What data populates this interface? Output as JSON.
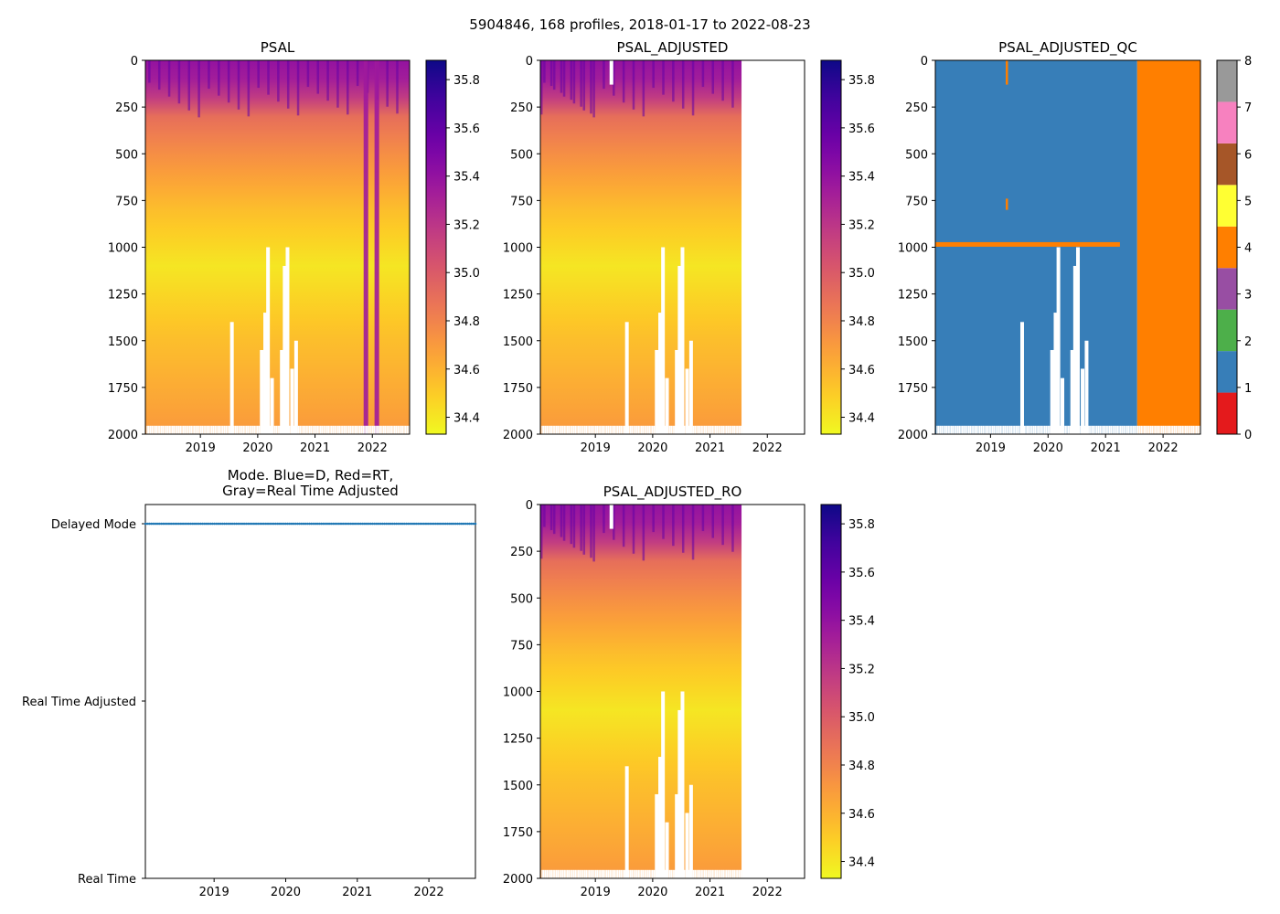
{
  "suptitle": "5904846, 168 profiles, 2018-01-17 to 2022-08-23",
  "colors": {
    "plasma": [
      "#f0f921",
      "#fdca26",
      "#fb9f3a",
      "#ed7953",
      "#d8576b",
      "#bd3786",
      "#9c179e",
      "#7201a8",
      "#46039f",
      "#0d0887"
    ],
    "qc_palette": [
      "#e41a1c",
      "#377eb8",
      "#4daf4a",
      "#984ea3",
      "#ff7f00",
      "#ffff33",
      "#a65628",
      "#f781bf",
      "#999999"
    ],
    "mode_delayed": "#1f77b4",
    "axis": "#000000"
  },
  "chart_data": [
    {
      "id": "psal",
      "type": "heatmap",
      "title": "PSAL",
      "xlabel": "",
      "ylabel": "",
      "xlim": [
        2018.04,
        2022.65
      ],
      "ylim": [
        2000,
        0
      ],
      "yticks": [
        0,
        250,
        500,
        750,
        1000,
        1250,
        1500,
        1750,
        2000
      ],
      "xticks": [
        2019,
        2020,
        2021,
        2022
      ],
      "data_end": 2022.65,
      "colormap": "plasma_r",
      "clim": [
        34.33,
        35.88
      ],
      "colorbar_ticks": [
        "34.4",
        "34.6",
        "34.8",
        "35.0",
        "35.2",
        "35.4",
        "35.6",
        "35.8"
      ],
      "colorbar_values": [
        34.4,
        34.6,
        34.8,
        35.0,
        35.2,
        35.4,
        35.6,
        35.8
      ],
      "profile_salinity": {
        "depth": [
          0,
          150,
          300,
          500,
          800,
          1100,
          1500,
          2000
        ],
        "psal": [
          35.4,
          35.3,
          34.9,
          34.75,
          34.55,
          34.4,
          34.55,
          34.7
        ]
      },
      "high_salinity_strips": [
        {
          "year": 2021.88,
          "psal": 35.35
        },
        {
          "year": 2022.07,
          "psal": 35.35
        }
      ],
      "data_gaps": [
        {
          "year": 2019.55,
          "from_depth": 1400
        },
        {
          "year": 2020.07,
          "from_depth": 1550
        },
        {
          "year": 2020.13,
          "from_depth": 1350
        },
        {
          "year": 2020.18,
          "from_depth": 1000
        },
        {
          "year": 2020.25,
          "from_depth": 1700
        },
        {
          "year": 2020.42,
          "from_depth": 1550
        },
        {
          "year": 2020.47,
          "from_depth": 1100
        },
        {
          "year": 2020.52,
          "from_depth": 1000
        },
        {
          "year": 2020.6,
          "from_depth": 1650
        },
        {
          "year": 2020.67,
          "from_depth": 1500
        }
      ]
    },
    {
      "id": "psal_adjusted",
      "type": "heatmap",
      "title": "PSAL_ADJUSTED",
      "xlabel": "",
      "ylabel": "",
      "xlim": [
        2018.04,
        2022.65
      ],
      "ylim": [
        2000,
        0
      ],
      "yticks": [
        0,
        250,
        500,
        750,
        1000,
        1250,
        1500,
        1750,
        2000
      ],
      "xticks": [
        2019,
        2020,
        2021,
        2022
      ],
      "data_end": 2021.55,
      "colormap": "plasma_r",
      "clim": [
        34.33,
        35.88
      ],
      "colorbar_ticks": [
        "34.4",
        "34.6",
        "34.8",
        "35.0",
        "35.2",
        "35.4",
        "35.6",
        "35.8"
      ],
      "colorbar_values": [
        34.4,
        34.6,
        34.8,
        35.0,
        35.2,
        35.4,
        35.6,
        35.8
      ],
      "profile_salinity": {
        "depth": [
          0,
          150,
          300,
          500,
          800,
          1100,
          1500,
          2000
        ],
        "psal": [
          35.4,
          35.3,
          34.9,
          34.75,
          34.55,
          34.4,
          34.55,
          34.7
        ]
      },
      "data_gaps": [
        {
          "year": 2019.28,
          "from_depth": 0,
          "to_depth": 130
        },
        {
          "year": 2019.55,
          "from_depth": 1400
        },
        {
          "year": 2020.07,
          "from_depth": 1550
        },
        {
          "year": 2020.13,
          "from_depth": 1350
        },
        {
          "year": 2020.18,
          "from_depth": 1000
        },
        {
          "year": 2020.25,
          "from_depth": 1700
        },
        {
          "year": 2020.42,
          "from_depth": 1550
        },
        {
          "year": 2020.47,
          "from_depth": 1100
        },
        {
          "year": 2020.52,
          "from_depth": 1000
        },
        {
          "year": 2020.6,
          "from_depth": 1650
        },
        {
          "year": 2020.67,
          "from_depth": 1500
        }
      ]
    },
    {
      "id": "psal_adjusted_qc",
      "type": "heatmap",
      "title": "PSAL_ADJUSTED_QC",
      "xlabel": "",
      "ylabel": "",
      "xlim": [
        2018.04,
        2022.65
      ],
      "ylim": [
        2000,
        0
      ],
      "yticks": [
        0,
        250,
        500,
        750,
        1000,
        1250,
        1500,
        1750,
        2000
      ],
      "xticks": [
        2019,
        2020,
        2021,
        2022
      ],
      "qc_values": {
        "adjusted_period_flag": 1,
        "after_adjustment_flag": 4,
        "adjusted_until": 2021.55
      },
      "flag4_line": {
        "depth": 985,
        "from": 2018.04,
        "to": 2021.25
      },
      "flag4_spikes": [
        {
          "year": 2019.28,
          "from_depth": 0,
          "to_depth": 130
        },
        {
          "year": 2019.28,
          "from_depth": 740,
          "to_depth": 800
        }
      ],
      "colorbar_ticks": [
        "0",
        "1",
        "2",
        "3",
        "4",
        "5",
        "6",
        "7",
        "8"
      ],
      "colorbar_values": [
        0,
        1,
        2,
        3,
        4,
        5,
        6,
        7,
        8
      ]
    },
    {
      "id": "mode",
      "type": "scatter",
      "title_lines": [
        "Mode. Blue=D, Red=RT,",
        "Gray=Real Time Adjusted"
      ],
      "xlabel": "",
      "ylabel": "",
      "xlim": [
        2018.04,
        2022.65
      ],
      "xticks": [
        2019,
        2020,
        2021,
        2022
      ],
      "ytick_labels": [
        "Delayed Mode",
        "Real Time Adjusted",
        "Real Time"
      ],
      "ytick_values": [
        2,
        1,
        0
      ],
      "series": [
        {
          "name": "D",
          "mode_value": 2,
          "count": 168,
          "x_start": 2018.04,
          "x_end": 2022.65
        }
      ]
    },
    {
      "id": "psal_adjusted_ro",
      "type": "heatmap",
      "title": "PSAL_ADJUSTED_RO",
      "xlabel": "",
      "ylabel": "",
      "xlim": [
        2018.04,
        2022.65
      ],
      "ylim": [
        2000,
        0
      ],
      "yticks": [
        0,
        250,
        500,
        750,
        1000,
        1250,
        1500,
        1750,
        2000
      ],
      "xticks": [
        2019,
        2020,
        2021,
        2022
      ],
      "data_end": 2021.55,
      "colormap": "plasma_r",
      "clim": [
        34.33,
        35.88
      ],
      "colorbar_ticks": [
        "34.4",
        "34.6",
        "34.8",
        "35.0",
        "35.2",
        "35.4",
        "35.6",
        "35.8"
      ],
      "colorbar_values": [
        34.4,
        34.6,
        34.8,
        35.0,
        35.2,
        35.4,
        35.6,
        35.8
      ],
      "profile_salinity": {
        "depth": [
          0,
          150,
          300,
          500,
          800,
          1100,
          1500,
          2000
        ],
        "psal": [
          35.4,
          35.3,
          34.9,
          34.75,
          34.55,
          34.4,
          34.55,
          34.7
        ]
      },
      "data_gaps": [
        {
          "year": 2019.28,
          "from_depth": 0,
          "to_depth": 130
        },
        {
          "year": 2019.55,
          "from_depth": 1400
        },
        {
          "year": 2020.07,
          "from_depth": 1550
        },
        {
          "year": 2020.13,
          "from_depth": 1350
        },
        {
          "year": 2020.18,
          "from_depth": 1000
        },
        {
          "year": 2020.25,
          "from_depth": 1700
        },
        {
          "year": 2020.42,
          "from_depth": 1550
        },
        {
          "year": 2020.47,
          "from_depth": 1100
        },
        {
          "year": 2020.52,
          "from_depth": 1000
        },
        {
          "year": 2020.6,
          "from_depth": 1650
        },
        {
          "year": 2020.67,
          "from_depth": 1500
        }
      ]
    }
  ]
}
